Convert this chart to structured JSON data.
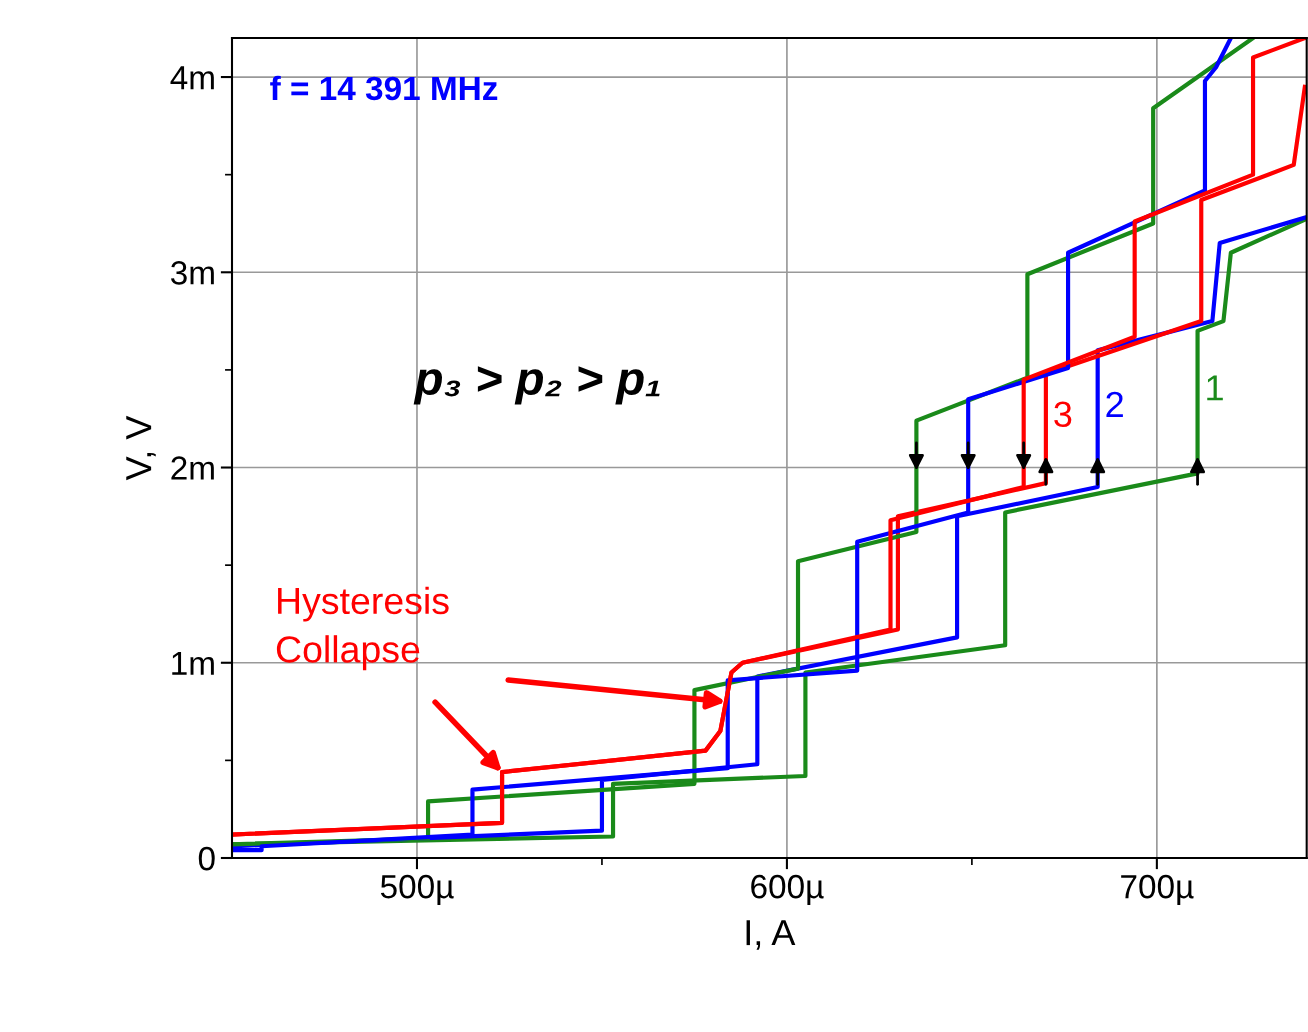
{
  "chart_data": {
    "type": "line",
    "xlabel": "I, A",
    "ylabel": "V, V",
    "xlim": [
      450,
      740.5
    ],
    "ylim": [
      0,
      4.2
    ],
    "xticks": [
      {
        "value": 500,
        "label": "500µ"
      },
      {
        "value": 550,
        "label": null
      },
      {
        "value": 600,
        "label": "600µ"
      },
      {
        "value": 650,
        "label": null
      },
      {
        "value": 700,
        "label": "700µ"
      }
    ],
    "yticks": [
      0,
      {
        "value": 0.5,
        "label": null
      },
      {
        "value": 1,
        "label": "1m"
      },
      {
        "value": 1.5,
        "label": null
      },
      {
        "value": 2,
        "label": "2m"
      },
      {
        "value": 2.5,
        "label": null
      },
      {
        "value": 3,
        "label": "3m"
      },
      {
        "value": 3.5,
        "label": null
      },
      {
        "value": 4,
        "label": "4m"
      }
    ],
    "grid": true,
    "legend": false,
    "marker": "none",
    "line_style": "solid",
    "series": [
      {
        "name": "1",
        "color": "#1a8a1a",
        "x": [
          450,
          553,
          553,
          605,
          605,
          659,
          659,
          711,
          711,
          718,
          720,
          740
        ],
        "values": [
          0.07,
          0.11,
          0.38,
          0.42,
          0.95,
          1.09,
          1.77,
          1.97,
          2.7,
          2.75,
          3.1,
          3.27
        ]
      },
      {
        "name": "2",
        "color": "#0000ff",
        "x": [
          450,
          550,
          550,
          592,
          592,
          646,
          646,
          684,
          684,
          715,
          717,
          740
        ],
        "values": [
          0.06,
          0.14,
          0.4,
          0.48,
          0.93,
          1.13,
          1.75,
          1.9,
          2.6,
          2.75,
          3.15,
          3.28
        ]
      },
      {
        "name": "3",
        "color": "#ff0000",
        "x": [
          450,
          523,
          523,
          578,
          582,
          585,
          588,
          630,
          630,
          670,
          670,
          712,
          712,
          737,
          740
        ],
        "values": [
          0.12,
          0.18,
          0.44,
          0.55,
          0.65,
          0.95,
          1,
          1.17,
          1.75,
          1.92,
          2.48,
          2.75,
          3.37,
          3.55,
          3.95
        ]
      },
      {
        "color": "#1a8a1a",
        "x": [
          726,
          699,
          699,
          665,
          665,
          635,
          635,
          603,
          603,
          575,
          575,
          503,
          503,
          450
        ],
        "values": [
          4.2,
          3.84,
          3.25,
          2.99,
          2.46,
          2.24,
          1.67,
          1.52,
          0.97,
          0.86,
          0.38,
          0.29,
          0.1,
          0.07
        ]
      },
      {
        "color": "#0000ff",
        "x": [
          720,
          716,
          713,
          713,
          676,
          676,
          649,
          649,
          619,
          619,
          584,
          584,
          515,
          515,
          458,
          458,
          450
        ],
        "values": [
          4.2,
          4.05,
          3.98,
          3.42,
          3.1,
          2.51,
          2.35,
          1.77,
          1.62,
          0.96,
          0.91,
          0.46,
          0.35,
          0.12,
          0.06,
          0.04,
          0.04
        ]
      },
      {
        "color": "#ff0000",
        "x": [
          740,
          726,
          726,
          694,
          694,
          664,
          664,
          628,
          628,
          588,
          585,
          582,
          578,
          523,
          523,
          450
        ],
        "values": [
          4.2,
          4.1,
          3.5,
          3.26,
          2.67,
          2.45,
          1.9,
          1.73,
          1.17,
          1,
          0.95,
          0.65,
          0.55,
          0.44,
          0.18,
          0.12
        ]
      }
    ],
    "annotations": [
      "f = 14 391 MHz",
      "p₃ > p₂ > p₁",
      "Hysteresis\nCollapse"
    ]
  }
}
